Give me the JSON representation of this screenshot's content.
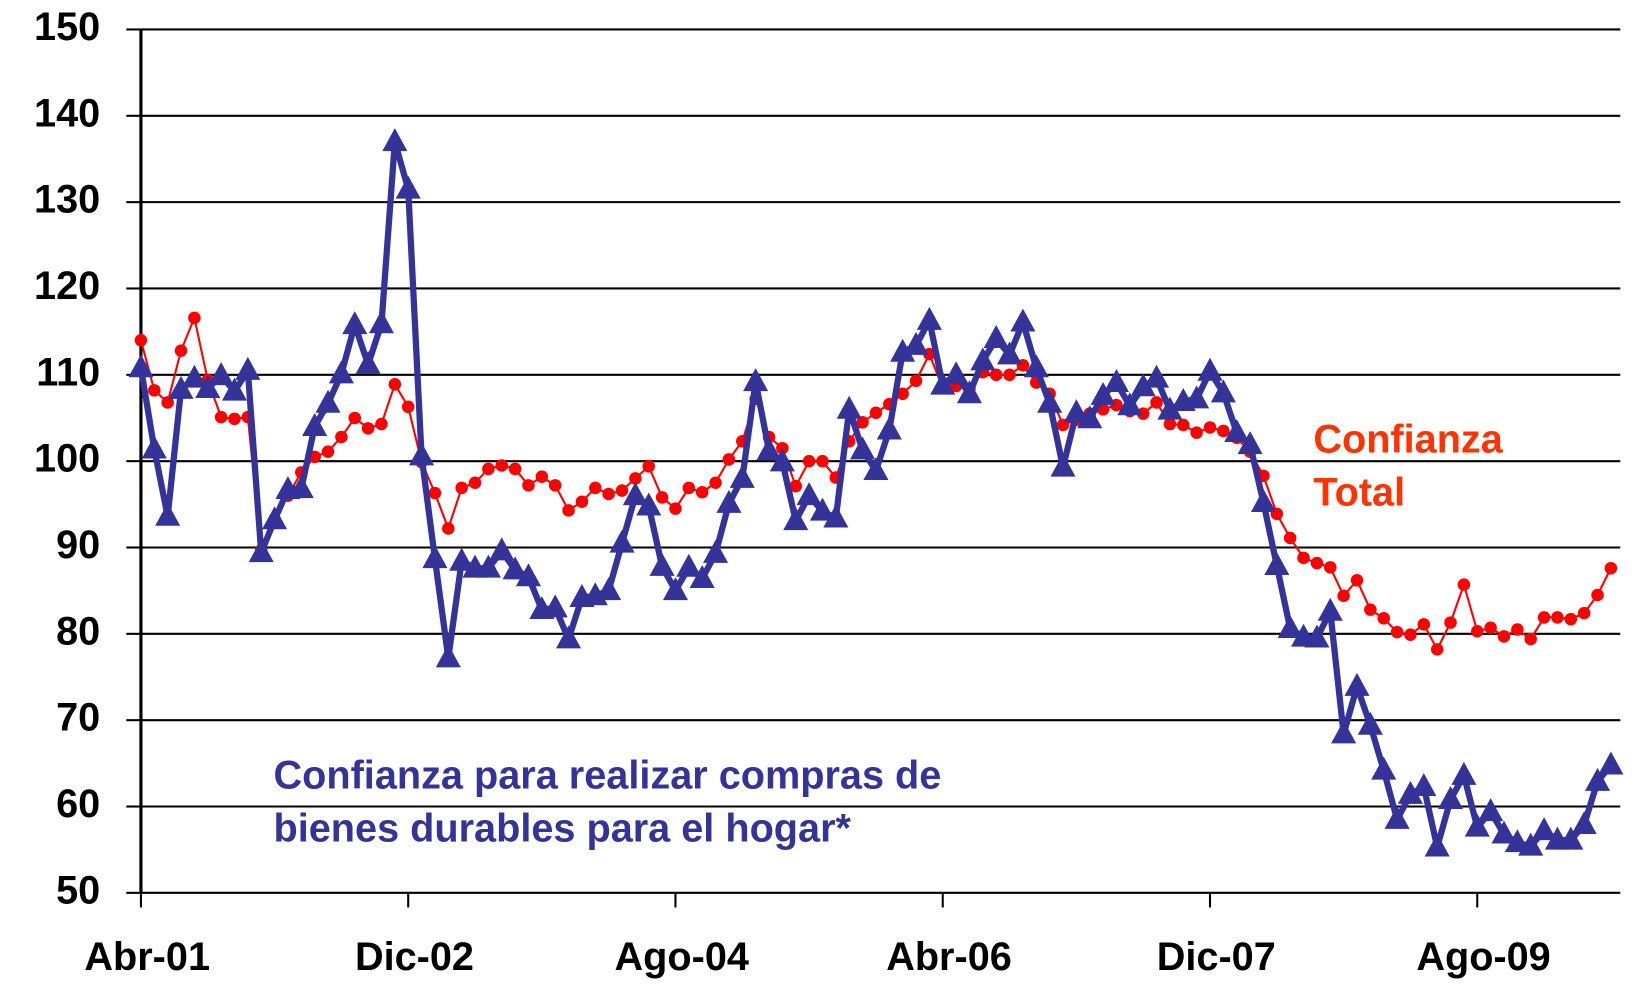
{
  "chart_data": {
    "type": "line",
    "categories": [
      "Abr-01",
      null,
      null,
      null,
      null,
      null,
      null,
      null,
      null,
      null,
      null,
      null,
      null,
      null,
      null,
      null,
      null,
      null,
      null,
      null,
      "Dic-02",
      null,
      null,
      null,
      null,
      null,
      null,
      null,
      null,
      null,
      null,
      null,
      null,
      null,
      null,
      null,
      null,
      null,
      null,
      null,
      "Ago-04",
      null,
      null,
      null,
      null,
      null,
      null,
      null,
      null,
      null,
      null,
      null,
      null,
      null,
      null,
      null,
      null,
      null,
      null,
      null,
      "Abr-06",
      null,
      null,
      null,
      null,
      null,
      null,
      null,
      null,
      null,
      null,
      null,
      null,
      null,
      null,
      null,
      null,
      null,
      null,
      null,
      "Dic-07",
      null,
      null,
      null,
      null,
      null,
      null,
      null,
      null,
      null,
      null,
      null,
      null,
      null,
      null,
      null,
      null,
      null,
      null,
      null,
      "Ago-09",
      null,
      null,
      null,
      null,
      null,
      null,
      null,
      null,
      null,
      null
    ],
    "series": [
      {
        "color": "#ff0000",
        "marker": "circle",
        "values": [
          114,
          108.2,
          106.8,
          112.8,
          116.6,
          109.4,
          105.1,
          104.9,
          105.1,
          89.7,
          93.3,
          96,
          98.7,
          100.5,
          101.1,
          102.8,
          105,
          103.8,
          104.3,
          108.9,
          106.3,
          99.9,
          96.3,
          92.2,
          96.9,
          97.5,
          99.1,
          99.5,
          99.1,
          97.2,
          98.2,
          97.2,
          94.3,
          95.3,
          96.9,
          96.2,
          96.6,
          98,
          99.4,
          95.8,
          94.5,
          96.9,
          96.4,
          97.5,
          100.2,
          102.3,
          107.2,
          102.8,
          101.5,
          97.1,
          100,
          100,
          98.1,
          102.3,
          104.5,
          105.6,
          106.6,
          107.8,
          109.3,
          112.4,
          108.5,
          108.7,
          108.4,
          110.3,
          110,
          110,
          111.1,
          109.1,
          107.8,
          104.2,
          104.8,
          105.5,
          106,
          106.5,
          105.8,
          105.5,
          106.8,
          104.3,
          104.2,
          103.3,
          103.9,
          103.5,
          102.7,
          101.1,
          98.3,
          93.9,
          91.1,
          88.8,
          88.2,
          87.7,
          84.4,
          86.2,
          82.8,
          81.8,
          80.2,
          79.9,
          81.1,
          78.2,
          81.3,
          85.7,
          80.3,
          80.7,
          79.7,
          80.5,
          79.4,
          81.9,
          81.9,
          81.7,
          82.4,
          84.5,
          87.6
        ]
      },
      {
        "color": "#333399",
        "marker": "triangle",
        "values": [
          110.8,
          101.4,
          93.6,
          108.3,
          109.6,
          108.4,
          109.9,
          108.1,
          110.5,
          89.4,
          93.2,
          96.7,
          96.8,
          104,
          106.7,
          110.1,
          115.8,
          111.2,
          115.9,
          137,
          131.5,
          100.6,
          88.7,
          77.2,
          88.4,
          87.6,
          87.6,
          89.6,
          87.4,
          86.6,
          82.8,
          83,
          79.4,
          84.2,
          84.4,
          85,
          90.5,
          96,
          94.8,
          87.8,
          85,
          87.7,
          86.4,
          89.3,
          95.1,
          98,
          109.2,
          101.2,
          99.9,
          93.1,
          96,
          94.2,
          93.4,
          106,
          101.3,
          98.9,
          103.6,
          112.6,
          113.4,
          116.3,
          108.8,
          110,
          107.8,
          111.6,
          114.2,
          112.3,
          116.1,
          110.8,
          106.7,
          99.3,
          105.6,
          104.9,
          107.6,
          109.1,
          106.4,
          108.6,
          109.6,
          105.9,
          106.9,
          107.2,
          110.4,
          107.9,
          103.3,
          101.9,
          95.2,
          87.9,
          80.6,
          79.6,
          79.5,
          82.6,
          68.4,
          73.9,
          69.4,
          64.2,
          58.5,
          61.4,
          62.3,
          55.3,
          60.8,
          63.6,
          57.6,
          59.4,
          56.8,
          55.8,
          55.4,
          57.2,
          56.1,
          56.1,
          57.9,
          62.9,
          64.8
        ]
      }
    ],
    "annotations": [
      {
        "lines": [
          "Confianza",
          "Total"
        ],
        "color": "#ff3300"
      },
      {
        "lines": [
          "Confianza para realizar compras de",
          "bienes durables para el hogar*"
        ],
        "color": "#333399"
      }
    ],
    "ylim": [
      50,
      150
    ],
    "yticks": [
      50,
      60,
      70,
      80,
      90,
      100,
      110,
      120,
      130,
      140,
      150
    ],
    "grid": true
  }
}
